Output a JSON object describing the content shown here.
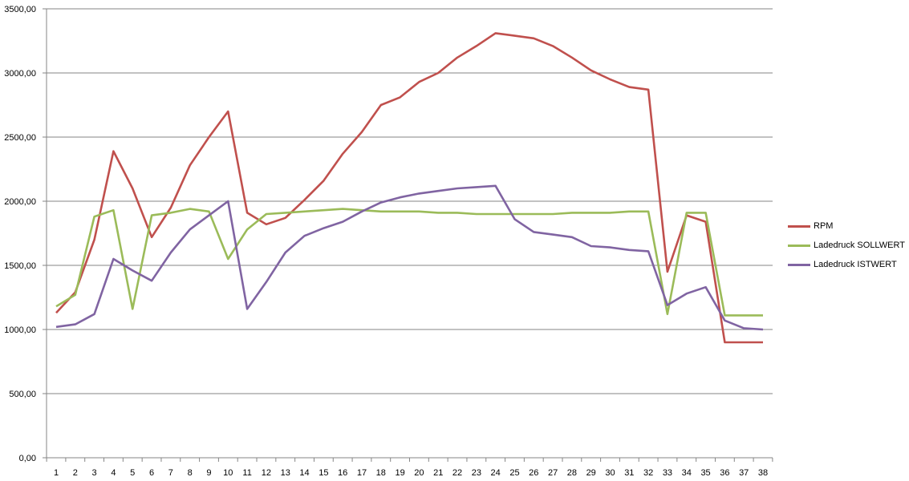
{
  "chart_data": {
    "type": "line",
    "title": "",
    "xlabel": "",
    "ylabel": "",
    "ylim": [
      0,
      3500
    ],
    "yticks": [
      "0,00",
      "500,00",
      "1000,00",
      "1500,00",
      "2000,00",
      "2500,00",
      "3000,00",
      "3500,00"
    ],
    "x": [
      "1",
      "2",
      "3",
      "4",
      "5",
      "6",
      "7",
      "8",
      "9",
      "10",
      "11",
      "12",
      "13",
      "14",
      "15",
      "16",
      "17",
      "18",
      "19",
      "20",
      "21",
      "22",
      "23",
      "24",
      "25",
      "26",
      "27",
      "28",
      "29",
      "30",
      "31",
      "32",
      "33",
      "34",
      "35",
      "36",
      "37",
      "38"
    ],
    "grid": true,
    "legend_position": "right",
    "series": [
      {
        "name": "RPM",
        "color": "#c0504d",
        "values": [
          1130,
          1290,
          1700,
          2390,
          2100,
          1720,
          1950,
          2280,
          2500,
          2700,
          1910,
          1820,
          1870,
          2010,
          2160,
          2370,
          2540,
          2750,
          2810,
          2930,
          3000,
          3120,
          3210,
          3310,
          3290,
          3270,
          3210,
          3120,
          3020,
          2950,
          2890,
          2870,
          1450,
          1890,
          1840,
          900,
          900,
          900
        ]
      },
      {
        "name": "Ladedruck SOLLWERT",
        "color": "#9bbb59",
        "values": [
          1180,
          1270,
          1880,
          1930,
          1160,
          1890,
          1910,
          1940,
          1920,
          1550,
          1780,
          1900,
          1910,
          1920,
          1930,
          1940,
          1930,
          1920,
          1920,
          1920,
          1910,
          1910,
          1900,
          1900,
          1900,
          1900,
          1900,
          1910,
          1910,
          1910,
          1920,
          1920,
          1120,
          1910,
          1910,
          1110,
          1110,
          1110
        ]
      },
      {
        "name": "Ladedruck ISTWERT",
        "color": "#8064a2",
        "values": [
          1020,
          1040,
          1120,
          1550,
          1460,
          1380,
          1600,
          1780,
          1890,
          2000,
          1160,
          1370,
          1600,
          1730,
          1790,
          1840,
          1920,
          1990,
          2030,
          2060,
          2080,
          2100,
          2110,
          2120,
          1860,
          1760,
          1740,
          1720,
          1650,
          1640,
          1620,
          1610,
          1190,
          1280,
          1330,
          1070,
          1010,
          1000
        ]
      }
    ]
  }
}
